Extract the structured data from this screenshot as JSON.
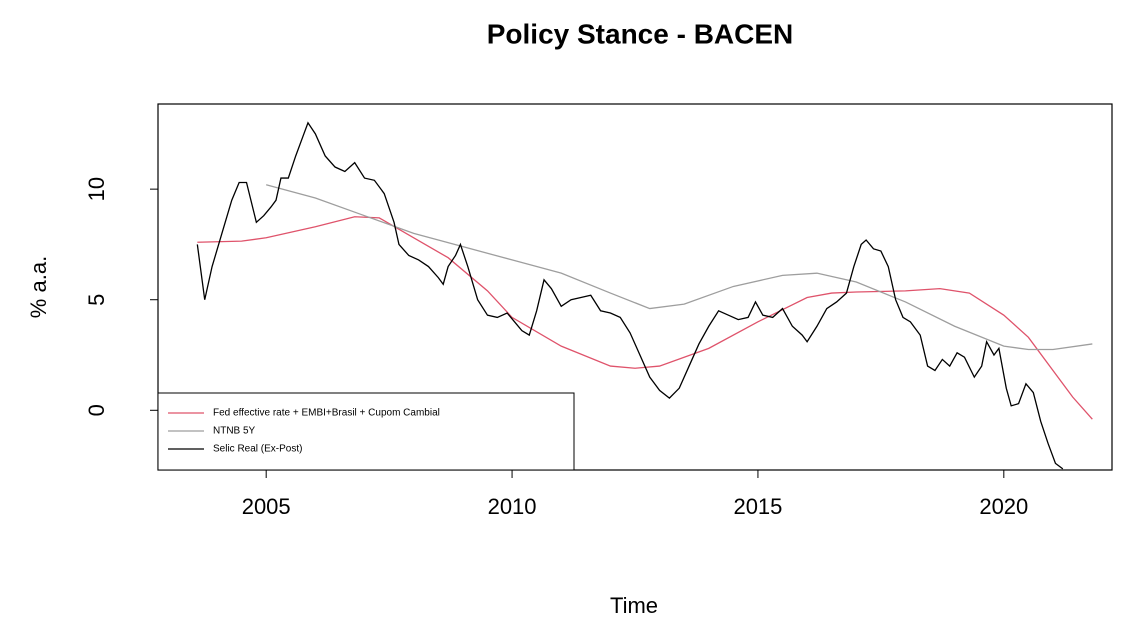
{
  "chart_data": {
    "type": "line",
    "title": "Policy Stance - BACEN",
    "xlabel": "Time",
    "ylabel": "% a.a.",
    "xlim": [
      2002.8,
      2022.2
    ],
    "ylim": [
      -2.7,
      13.85
    ],
    "xticks": [
      2005,
      2010,
      2015,
      2020
    ],
    "yticks": [
      0,
      5,
      10
    ],
    "legend": "bottomleft",
    "series": [
      {
        "name": "Fed effective rate + EMBI+Brasil + Cupom Cambial",
        "color": "#DF536B",
        "x": [
          2003.6,
          2004.5,
          2005,
          2006,
          2006.8,
          2007.3,
          2008,
          2008.7,
          2009.5,
          2010,
          2011,
          2012,
          2012.5,
          2013,
          2014,
          2015,
          2016,
          2016.5,
          2017,
          2018,
          2018.7,
          2019.3,
          2020,
          2020.5,
          2021,
          2021.4,
          2021.8
        ],
        "values": [
          7.6,
          7.65,
          7.8,
          8.3,
          8.75,
          8.7,
          7.8,
          6.9,
          5.4,
          4.2,
          2.9,
          2.0,
          1.9,
          2.0,
          2.8,
          4.0,
          5.1,
          5.3,
          5.35,
          5.4,
          5.5,
          5.3,
          4.3,
          3.3,
          1.8,
          0.6,
          -0.4
        ]
      },
      {
        "name": "NTNB 5Y",
        "color": "#9E9E9E",
        "x": [
          2005,
          2006,
          2007,
          2008,
          2009,
          2010,
          2011,
          2012,
          2012.8,
          2013.5,
          2014.5,
          2015.5,
          2016.2,
          2017,
          2018,
          2019,
          2020,
          2020.5,
          2021,
          2021.8
        ],
        "values": [
          10.2,
          9.6,
          8.8,
          8.0,
          7.4,
          6.8,
          6.2,
          5.3,
          4.6,
          4.8,
          5.6,
          6.1,
          6.2,
          5.8,
          4.9,
          3.8,
          2.9,
          2.75,
          2.75,
          3.0
        ]
      },
      {
        "name": "Selic Real (Ex-Post)",
        "color": "#000000",
        "x": [
          2003.6,
          2003.75,
          2003.9,
          2004.1,
          2004.3,
          2004.45,
          2004.6,
          2004.8,
          2004.95,
          2005.1,
          2005.2,
          2005.3,
          2005.45,
          2005.6,
          2005.75,
          2005.85,
          2006.0,
          2006.2,
          2006.4,
          2006.6,
          2006.8,
          2007.0,
          2007.2,
          2007.4,
          2007.6,
          2007.7,
          2007.9,
          2008.1,
          2008.3,
          2008.5,
          2008.6,
          2008.7,
          2008.85,
          2008.95,
          2009.1,
          2009.3,
          2009.5,
          2009.7,
          2009.9,
          2010.05,
          2010.2,
          2010.35,
          2010.5,
          2010.65,
          2010.8,
          2011.0,
          2011.2,
          2011.4,
          2011.6,
          2011.8,
          2012.0,
          2012.2,
          2012.4,
          2012.6,
          2012.8,
          2013.0,
          2013.2,
          2013.4,
          2013.6,
          2013.8,
          2014.0,
          2014.2,
          2014.4,
          2014.6,
          2014.8,
          2014.95,
          2015.1,
          2015.3,
          2015.5,
          2015.7,
          2015.9,
          2016.0,
          2016.2,
          2016.4,
          2016.6,
          2016.8,
          2016.95,
          2017.1,
          2017.2,
          2017.35,
          2017.5,
          2017.65,
          2017.8,
          2017.95,
          2018.1,
          2018.3,
          2018.45,
          2018.6,
          2018.75,
          2018.9,
          2019.05,
          2019.2,
          2019.4,
          2019.55,
          2019.65,
          2019.8,
          2019.9,
          2020.05,
          2020.15,
          2020.3,
          2020.45,
          2020.6,
          2020.75,
          2020.9,
          2021.05,
          2021.2
        ],
        "values": [
          7.5,
          5.0,
          6.5,
          8.0,
          9.5,
          10.3,
          10.3,
          8.5,
          8.8,
          9.2,
          9.5,
          10.5,
          10.5,
          11.5,
          12.4,
          13.0,
          12.5,
          11.5,
          11.0,
          10.8,
          11.2,
          10.5,
          10.4,
          9.8,
          8.5,
          7.5,
          7.0,
          6.8,
          6.5,
          6.0,
          5.7,
          6.5,
          7.0,
          7.5,
          6.5,
          5.0,
          4.3,
          4.2,
          4.4,
          4.0,
          3.6,
          3.4,
          4.5,
          5.9,
          5.5,
          4.7,
          5.0,
          5.1,
          5.2,
          4.5,
          4.4,
          4.2,
          3.5,
          2.5,
          1.5,
          0.9,
          0.55,
          1.0,
          2.0,
          3.0,
          3.8,
          4.5,
          4.3,
          4.1,
          4.2,
          4.9,
          4.3,
          4.2,
          4.6,
          3.8,
          3.4,
          3.1,
          3.8,
          4.6,
          4.9,
          5.3,
          6.5,
          7.5,
          7.7,
          7.3,
          7.2,
          6.5,
          5.0,
          4.2,
          4.0,
          3.4,
          2.0,
          1.8,
          2.3,
          2.0,
          2.6,
          2.4,
          1.5,
          2.0,
          3.1,
          2.5,
          2.8,
          1.0,
          0.2,
          0.3,
          1.2,
          0.8,
          -0.5,
          -1.5,
          -2.4,
          -2.65
        ]
      }
    ]
  }
}
